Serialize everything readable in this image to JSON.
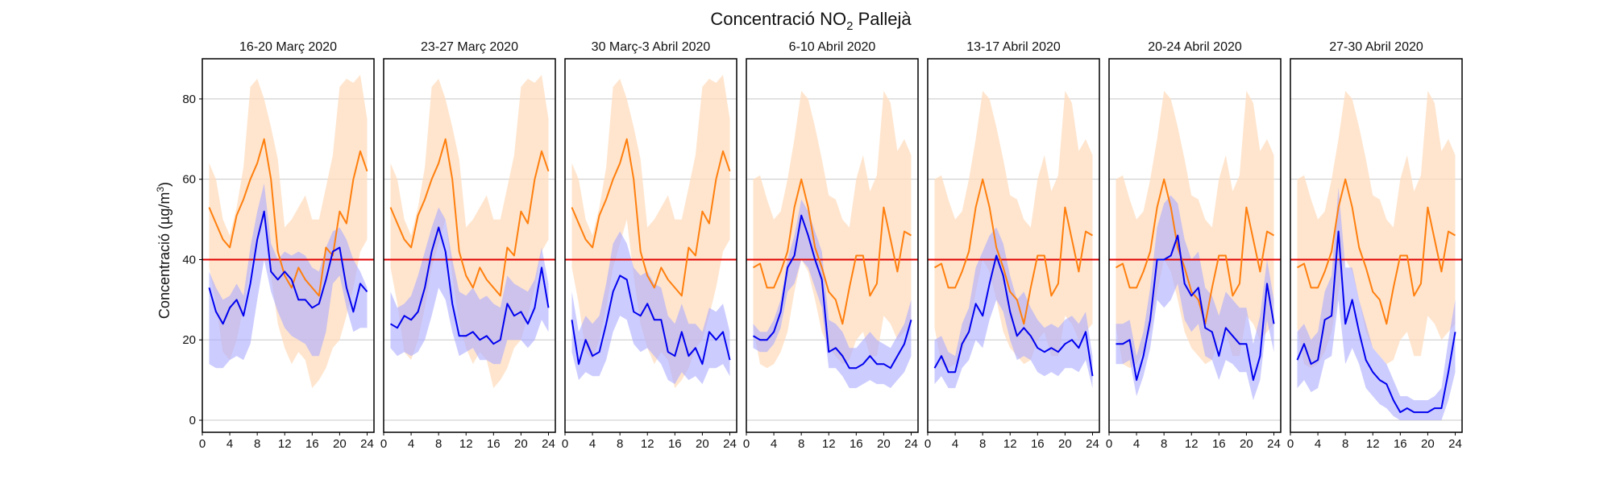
{
  "figure": {
    "title_main": "Concentració NO",
    "title_sub": "2",
    "title_rest": " Pallejà",
    "ylabel_main": "Concentració (µg/m",
    "ylabel_sup": "3",
    "ylabel_end": ")"
  },
  "colors": {
    "orange_line": "#ff7f0e",
    "orange_band": "#ffdcbe",
    "blue_line": "#0000ee",
    "blue_band": "#aaaaff",
    "limit_line": "#e00000",
    "grid": "#c8c8c8"
  },
  "chart_data": {
    "type": "line",
    "xlim": [
      0,
      25
    ],
    "ylim": [
      -3,
      90
    ],
    "xticks": [
      0,
      4,
      8,
      12,
      16,
      20,
      24
    ],
    "yticks": [
      0,
      20,
      40,
      60,
      80
    ],
    "limit_value": 40,
    "grid": "horizontal",
    "panels": [
      {
        "title": "16-20 Març 2020",
        "x": [
          1,
          2,
          3,
          4,
          5,
          6,
          7,
          8,
          9,
          10,
          11,
          12,
          13,
          14,
          15,
          16,
          17,
          18,
          19,
          20,
          21,
          22,
          23,
          24
        ],
        "orange_line": [
          53,
          49,
          45,
          43,
          51,
          55,
          60,
          64,
          70,
          60,
          42,
          36,
          33,
          38,
          35,
          33,
          31,
          43,
          41,
          52,
          49,
          60,
          67,
          62
        ],
        "orange_upper": [
          64,
          60,
          50,
          46,
          53,
          63,
          83,
          85,
          80,
          73,
          65,
          48,
          50,
          53,
          56,
          50,
          50,
          58,
          66,
          83,
          85,
          84,
          86,
          75
        ],
        "orange_lower": [
          38,
          29,
          17,
          15,
          20,
          28,
          38,
          44,
          50,
          36,
          24,
          18,
          14,
          17,
          15,
          8,
          10,
          13,
          18,
          20,
          26,
          33,
          42,
          45
        ],
        "blue_line": [
          33,
          27,
          24,
          28,
          30,
          26,
          34,
          45,
          52,
          37,
          35,
          37,
          35,
          30,
          30,
          28,
          29,
          35,
          42,
          43,
          33,
          27,
          34,
          32
        ],
        "blue_upper": [
          37,
          33,
          30,
          31,
          34,
          31,
          43,
          52,
          59,
          44,
          40,
          42,
          41,
          42,
          41,
          38,
          37,
          43,
          47,
          48,
          45,
          40,
          37,
          33
        ],
        "blue_lower": [
          14,
          13,
          13,
          15,
          16,
          15,
          19,
          30,
          40,
          32,
          27,
          23,
          21,
          20,
          19,
          16,
          16,
          22,
          34,
          36,
          28,
          22,
          23,
          23
        ]
      },
      {
        "title": "23-27 Març 2020",
        "x": [
          1,
          2,
          3,
          4,
          5,
          6,
          7,
          8,
          9,
          10,
          11,
          12,
          13,
          14,
          15,
          16,
          17,
          18,
          19,
          20,
          21,
          22,
          23,
          24
        ],
        "orange_line": [
          53,
          49,
          45,
          43,
          51,
          55,
          60,
          64,
          70,
          60,
          42,
          36,
          33,
          38,
          35,
          33,
          31,
          43,
          41,
          52,
          49,
          60,
          67,
          62
        ],
        "orange_upper": [
          64,
          60,
          50,
          46,
          53,
          63,
          83,
          85,
          80,
          73,
          65,
          48,
          50,
          53,
          56,
          50,
          50,
          58,
          66,
          83,
          85,
          84,
          86,
          75
        ],
        "orange_lower": [
          38,
          29,
          17,
          15,
          20,
          28,
          38,
          44,
          50,
          36,
          24,
          18,
          14,
          17,
          15,
          8,
          10,
          13,
          18,
          20,
          26,
          33,
          42,
          45
        ],
        "blue_line": [
          24,
          23,
          26,
          25,
          27,
          33,
          42,
          48,
          42,
          29,
          21,
          21,
          22,
          20,
          21,
          19,
          20,
          29,
          26,
          27,
          24,
          28,
          38,
          28
        ],
        "blue_upper": [
          32,
          28,
          29,
          31,
          36,
          42,
          48,
          53,
          50,
          40,
          32,
          31,
          33,
          30,
          31,
          29,
          28,
          36,
          34,
          33,
          32,
          35,
          43,
          34
        ],
        "blue_lower": [
          18,
          16,
          17,
          16,
          17,
          20,
          26,
          33,
          30,
          22,
          16,
          17,
          18,
          15,
          15,
          14,
          14,
          20,
          20,
          20,
          18,
          20,
          25,
          22
        ]
      },
      {
        "title": "30 Març-3 Abril 2020",
        "x": [
          1,
          2,
          3,
          4,
          5,
          6,
          7,
          8,
          9,
          10,
          11,
          12,
          13,
          14,
          15,
          16,
          17,
          18,
          19,
          20,
          21,
          22,
          23,
          24
        ],
        "orange_line": [
          53,
          49,
          45,
          43,
          51,
          55,
          60,
          64,
          70,
          60,
          42,
          36,
          33,
          38,
          35,
          33,
          31,
          43,
          41,
          52,
          49,
          60,
          67,
          62
        ],
        "orange_upper": [
          64,
          60,
          50,
          46,
          53,
          63,
          83,
          85,
          80,
          73,
          65,
          48,
          50,
          53,
          56,
          50,
          50,
          58,
          66,
          83,
          85,
          84,
          86,
          75
        ],
        "orange_lower": [
          38,
          29,
          17,
          15,
          20,
          28,
          38,
          44,
          50,
          36,
          24,
          18,
          14,
          17,
          15,
          8,
          10,
          13,
          18,
          20,
          26,
          33,
          42,
          45
        ],
        "blue_line": [
          25,
          14,
          20,
          16,
          17,
          24,
          32,
          36,
          35,
          27,
          26,
          29,
          25,
          25,
          17,
          16,
          22,
          16,
          18,
          14,
          22,
          20,
          22,
          15
        ],
        "blue_upper": [
          32,
          22,
          26,
          24,
          26,
          34,
          44,
          47,
          44,
          38,
          36,
          37,
          34,
          33,
          26,
          24,
          29,
          24,
          24,
          22,
          28,
          27,
          29,
          22
        ],
        "blue_lower": [
          17,
          10,
          12,
          11,
          11,
          15,
          22,
          26,
          25,
          19,
          17,
          18,
          16,
          14,
          10,
          9,
          12,
          10,
          11,
          9,
          13,
          13,
          14,
          11
        ]
      },
      {
        "title": "6-10 Abril 2020",
        "x": [
          1,
          2,
          3,
          4,
          5,
          6,
          7,
          8,
          9,
          10,
          11,
          12,
          13,
          14,
          15,
          16,
          17,
          18,
          19,
          20,
          21,
          22,
          23,
          24
        ],
        "orange_line": [
          38,
          39,
          33,
          33,
          37,
          42,
          53,
          60,
          53,
          43,
          38,
          32,
          30,
          24,
          33,
          41,
          41,
          31,
          34,
          53,
          45,
          37,
          47,
          46
        ],
        "orange_upper": [
          60,
          61,
          55,
          50,
          52,
          60,
          70,
          82,
          80,
          73,
          65,
          56,
          55,
          50,
          48,
          60,
          66,
          57,
          61,
          82,
          79,
          67,
          70,
          66
        ],
        "orange_lower": [
          23,
          14,
          13,
          14,
          17,
          22,
          32,
          40,
          37,
          30,
          22,
          18,
          16,
          14,
          15,
          20,
          22,
          16,
          16,
          26,
          24,
          20,
          22,
          24
        ],
        "blue_line": [
          21,
          20,
          20,
          22,
          27,
          38,
          41,
          51,
          46,
          40,
          35,
          17,
          18,
          16,
          13,
          13,
          14,
          16,
          14,
          14,
          13,
          16,
          19,
          25
        ],
        "blue_upper": [
          24,
          22,
          22,
          25,
          30,
          40,
          46,
          55,
          52,
          47,
          42,
          25,
          24,
          22,
          18,
          18,
          20,
          22,
          20,
          19,
          18,
          21,
          24,
          30
        ],
        "blue_lower": [
          18,
          17,
          17,
          19,
          23,
          32,
          34,
          40,
          38,
          33,
          28,
          13,
          13,
          11,
          8,
          8,
          9,
          10,
          9,
          9,
          8,
          10,
          12,
          16
        ]
      },
      {
        "title": "13-17 Abril 2020",
        "x": [
          1,
          2,
          3,
          4,
          5,
          6,
          7,
          8,
          9,
          10,
          11,
          12,
          13,
          14,
          15,
          16,
          17,
          18,
          19,
          20,
          21,
          22,
          23,
          24
        ],
        "orange_line": [
          38,
          39,
          33,
          33,
          37,
          42,
          53,
          60,
          53,
          43,
          38,
          32,
          30,
          24,
          33,
          41,
          41,
          31,
          34,
          53,
          45,
          37,
          47,
          46
        ],
        "orange_upper": [
          60,
          61,
          55,
          50,
          52,
          60,
          70,
          82,
          80,
          73,
          65,
          56,
          55,
          50,
          48,
          60,
          66,
          57,
          61,
          82,
          79,
          67,
          70,
          66
        ],
        "orange_lower": [
          23,
          14,
          13,
          14,
          17,
          22,
          32,
          40,
          37,
          30,
          22,
          18,
          16,
          14,
          15,
          20,
          22,
          16,
          16,
          26,
          24,
          20,
          22,
          24
        ],
        "blue_line": [
          13,
          16,
          12,
          12,
          19,
          22,
          29,
          26,
          34,
          41,
          36,
          27,
          21,
          23,
          21,
          18,
          17,
          18,
          17,
          19,
          20,
          18,
          22,
          11
        ],
        "blue_upper": [
          20,
          21,
          17,
          16,
          24,
          28,
          38,
          42,
          46,
          48,
          44,
          36,
          30,
          32,
          28,
          25,
          23,
          24,
          23,
          25,
          26,
          24,
          27,
          16
        ],
        "blue_lower": [
          9,
          11,
          8,
          8,
          13,
          15,
          20,
          18,
          25,
          30,
          27,
          20,
          15,
          16,
          15,
          12,
          11,
          12,
          11,
          13,
          13,
          12,
          15,
          8
        ]
      },
      {
        "title": "20-24 Abril 2020",
        "x": [
          1,
          2,
          3,
          4,
          5,
          6,
          7,
          8,
          9,
          10,
          11,
          12,
          13,
          14,
          15,
          16,
          17,
          18,
          19,
          20,
          21,
          22,
          23,
          24
        ],
        "orange_line": [
          38,
          39,
          33,
          33,
          37,
          42,
          53,
          60,
          53,
          43,
          38,
          32,
          30,
          24,
          33,
          41,
          41,
          31,
          34,
          53,
          45,
          37,
          47,
          46
        ],
        "orange_upper": [
          60,
          61,
          55,
          50,
          52,
          60,
          70,
          82,
          80,
          73,
          65,
          56,
          55,
          50,
          48,
          60,
          66,
          57,
          61,
          82,
          79,
          67,
          70,
          66
        ],
        "orange_lower": [
          23,
          14,
          13,
          14,
          17,
          22,
          32,
          40,
          37,
          30,
          22,
          18,
          16,
          14,
          15,
          20,
          22,
          16,
          16,
          26,
          24,
          20,
          22,
          24
        ],
        "blue_line": [
          19,
          19,
          20,
          10,
          16,
          25,
          40,
          40,
          41,
          46,
          34,
          31,
          33,
          23,
          22,
          16,
          23,
          21,
          19,
          19,
          10,
          16,
          34,
          24
        ],
        "blue_upper": [
          24,
          24,
          25,
          16,
          22,
          33,
          48,
          54,
          56,
          54,
          45,
          40,
          42,
          33,
          31,
          26,
          32,
          30,
          28,
          28,
          19,
          26,
          40,
          30
        ],
        "blue_lower": [
          14,
          14,
          15,
          6,
          11,
          18,
          30,
          28,
          30,
          34,
          25,
          22,
          24,
          16,
          15,
          10,
          15,
          14,
          12,
          12,
          5,
          10,
          25,
          17
        ]
      },
      {
        "title": "27-30 Abril 2020",
        "x": [
          1,
          2,
          3,
          4,
          5,
          6,
          7,
          8,
          9,
          10,
          11,
          12,
          13,
          14,
          15,
          16,
          17,
          18,
          19,
          20,
          21,
          22,
          23,
          24
        ],
        "orange_line": [
          38,
          39,
          33,
          33,
          37,
          42,
          53,
          60,
          53,
          43,
          38,
          32,
          30,
          24,
          33,
          41,
          41,
          31,
          34,
          53,
          45,
          37,
          47,
          46
        ],
        "orange_upper": [
          60,
          61,
          55,
          50,
          52,
          60,
          70,
          82,
          80,
          73,
          65,
          56,
          55,
          50,
          48,
          60,
          66,
          57,
          61,
          82,
          79,
          67,
          70,
          66
        ],
        "orange_lower": [
          23,
          14,
          13,
          14,
          17,
          22,
          32,
          40,
          37,
          30,
          22,
          18,
          16,
          14,
          15,
          20,
          22,
          16,
          16,
          26,
          24,
          20,
          22,
          24
        ],
        "blue_line": [
          15,
          19,
          14,
          15,
          25,
          26,
          47,
          24,
          30,
          22,
          15,
          12,
          10,
          9,
          5,
          2,
          3,
          2,
          2,
          2,
          3,
          3,
          12,
          22
        ],
        "blue_upper": [
          22,
          24,
          20,
          22,
          32,
          36,
          58,
          38,
          38,
          30,
          24,
          18,
          16,
          14,
          10,
          6,
          6,
          5,
          5,
          5,
          6,
          8,
          20,
          30
        ],
        "blue_lower": [
          8,
          10,
          7,
          8,
          15,
          16,
          30,
          14,
          18,
          14,
          8,
          6,
          4,
          3,
          1,
          0,
          0,
          0,
          0,
          0,
          0,
          0,
          5,
          12
        ]
      }
    ]
  }
}
